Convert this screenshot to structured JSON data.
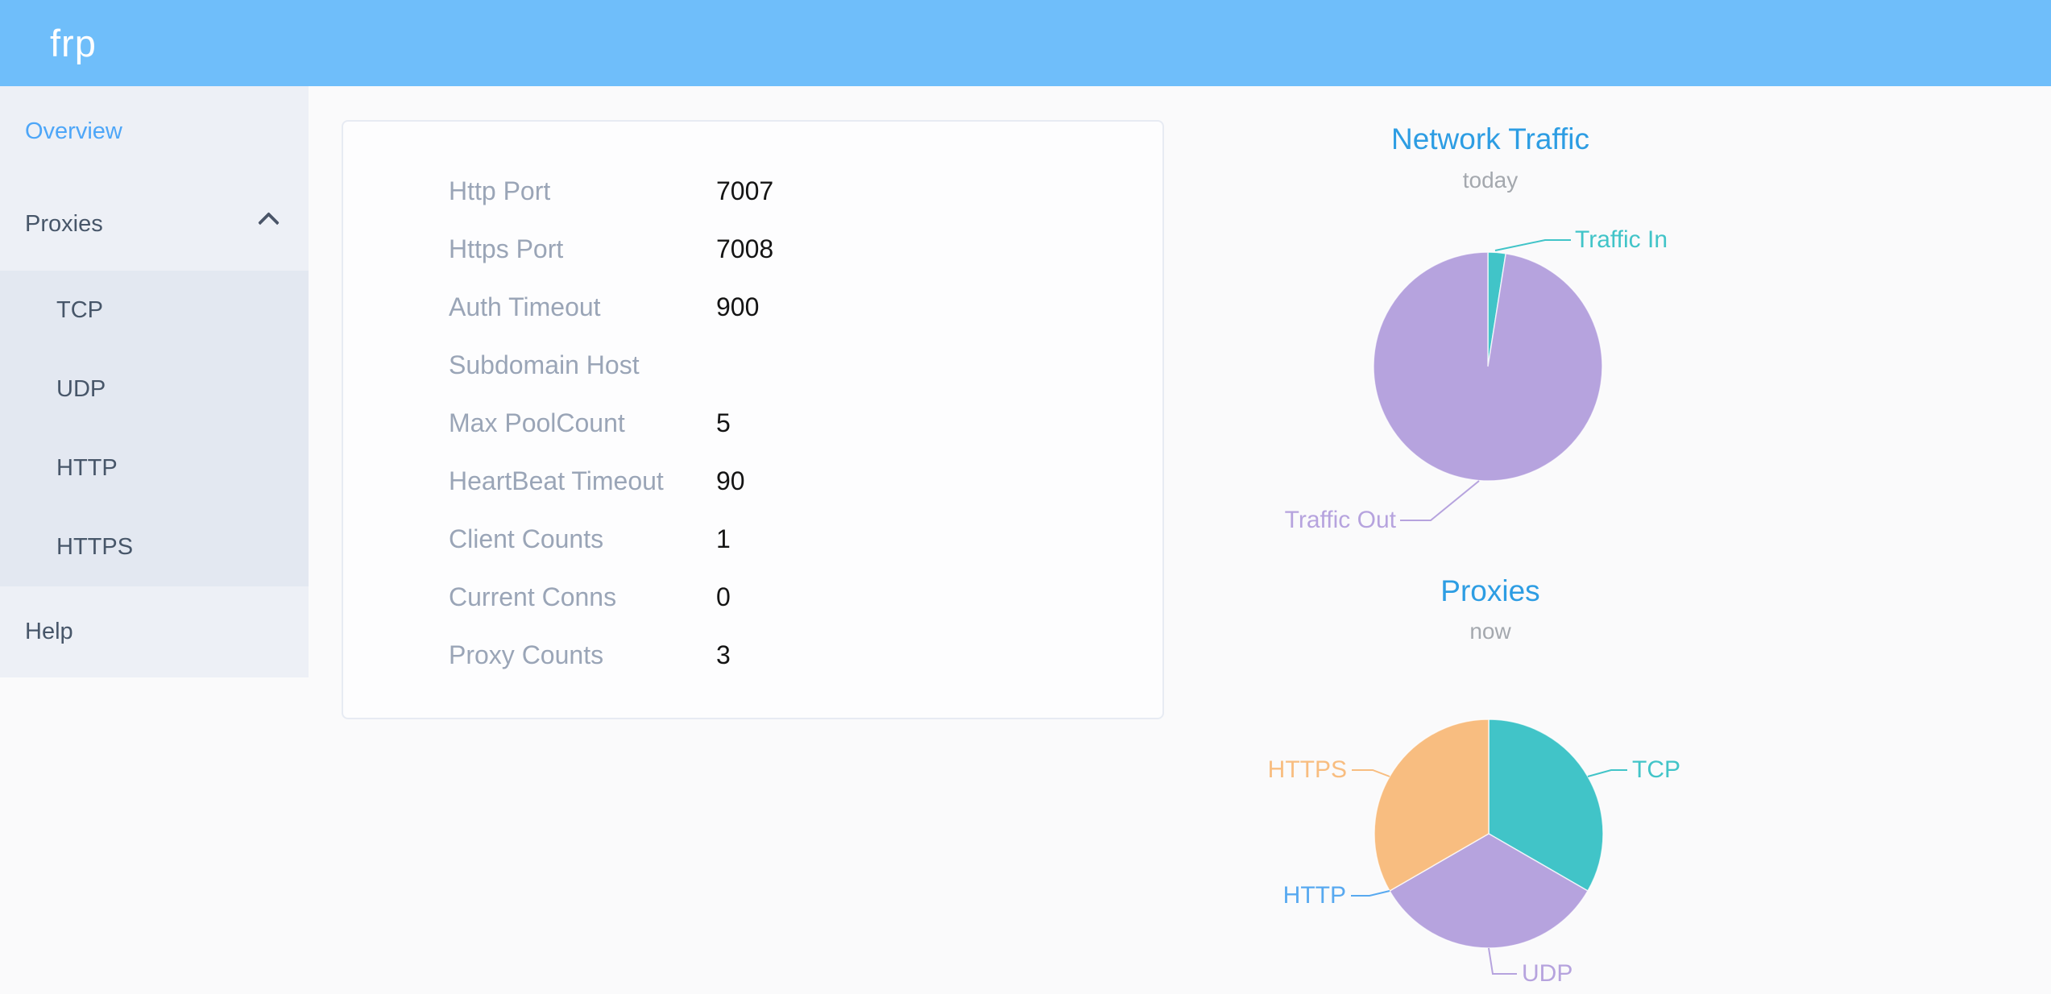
{
  "app": {
    "logo_text": "frp"
  },
  "sidebar": {
    "items": {
      "overview": "Overview",
      "proxies": "Proxies",
      "help": "Help"
    },
    "proxy_types": [
      "TCP",
      "UDP",
      "HTTP",
      "HTTPS"
    ],
    "active_item": "Overview",
    "proxies_expanded": true
  },
  "server_info": {
    "rows": [
      {
        "label": "Http Port",
        "value": "7007"
      },
      {
        "label": "Https Port",
        "value": "7008"
      },
      {
        "label": "Auth Timeout",
        "value": "900"
      },
      {
        "label": "Subdomain Host",
        "value": ""
      },
      {
        "label": "Max PoolCount",
        "value": "5"
      },
      {
        "label": "HeartBeat Timeout",
        "value": "90"
      },
      {
        "label": "Client Counts",
        "value": "1"
      },
      {
        "label": "Current Conns",
        "value": "0"
      },
      {
        "label": "Proxy Counts",
        "value": "3"
      }
    ]
  },
  "chart_data": [
    {
      "type": "pie",
      "title": "Network Traffic",
      "subtitle": "today",
      "legend_position": "callout-labels",
      "slices": [
        {
          "label": "Traffic In",
          "pct": 2.5,
          "color": "#41c4c8"
        },
        {
          "label": "Traffic Out",
          "pct": 97.5,
          "color": "#b6a3de"
        }
      ]
    },
    {
      "type": "pie",
      "title": "Proxies",
      "subtitle": "now",
      "legend_position": "callout-labels",
      "slices": [
        {
          "label": "TCP",
          "value": 1,
          "color": "#41c4c8"
        },
        {
          "label": "UDP",
          "value": 1,
          "color": "#b6a3de"
        },
        {
          "label": "HTTP",
          "value": 0,
          "color": "#58a9f0"
        },
        {
          "label": "HTTPS",
          "value": 1,
          "color": "#f8bd80"
        }
      ]
    }
  ],
  "colors": {
    "header_bg": "#6fbefa",
    "active_nav": "#4da6f8",
    "chart_title": "#2d9de3",
    "teal": "#41c4c8",
    "purple": "#b6a3de",
    "orange": "#f8bd80",
    "http_blue": "#58a9f0"
  }
}
